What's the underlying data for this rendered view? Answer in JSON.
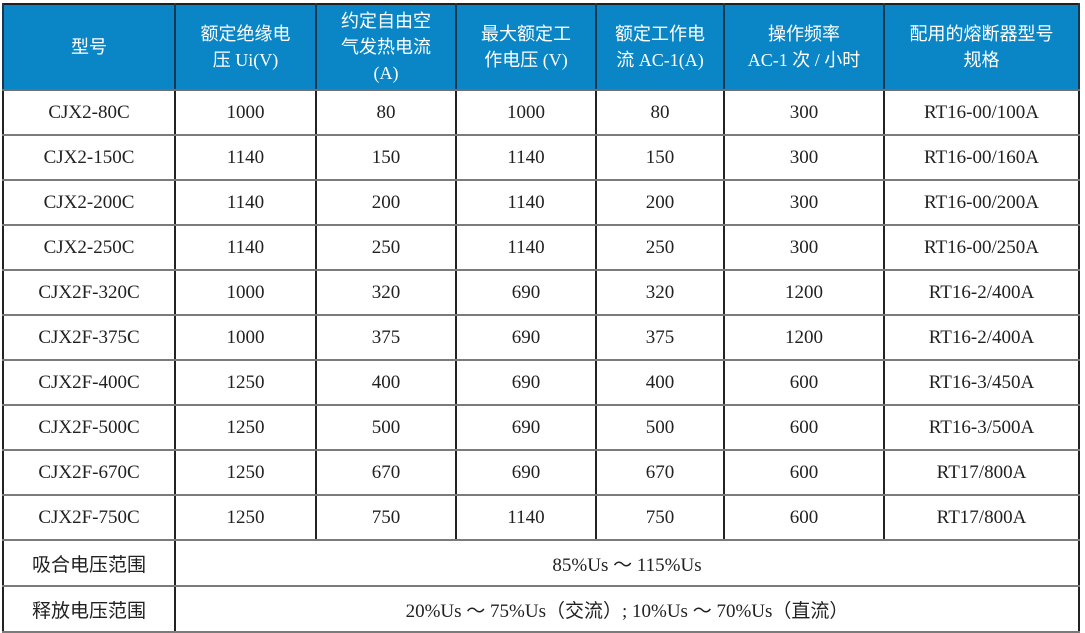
{
  "table": {
    "columns": [
      "型号",
      "额定绝缘电\n压 Ui(V)",
      "约定自由空\n气发热电流\n(A)",
      "最大额定工\n作电压 (V)",
      "额定工作电\n流 AC-1(A)",
      "操作频率\nAC-1 次 / 小时",
      "配用的熔断器型号\n规格"
    ],
    "rows": [
      [
        "CJX2-80C",
        "1000",
        "80",
        "1000",
        "80",
        "300",
        "RT16-00/100A"
      ],
      [
        "CJX2-150C",
        "1140",
        "150",
        "1140",
        "150",
        "300",
        "RT16-00/160A"
      ],
      [
        "CJX2-200C",
        "1140",
        "200",
        "1140",
        "200",
        "300",
        "RT16-00/200A"
      ],
      [
        "CJX2-250C",
        "1140",
        "250",
        "1140",
        "250",
        "300",
        "RT16-00/250A"
      ],
      [
        "CJX2F-320C",
        "1000",
        "320",
        "690",
        "320",
        "1200",
        "RT16-2/400A"
      ],
      [
        "CJX2F-375C",
        "1000",
        "375",
        "690",
        "375",
        "1200",
        "RT16-2/400A"
      ],
      [
        "CJX2F-400C",
        "1250",
        "400",
        "690",
        "400",
        "600",
        "RT16-3/450A"
      ],
      [
        "CJX2F-500C",
        "1250",
        "500",
        "690",
        "500",
        "600",
        "RT16-3/500A"
      ],
      [
        "CJX2F-670C",
        "1250",
        "670",
        "690",
        "670",
        "600",
        "RT17/800A"
      ],
      [
        "CJX2F-750C",
        "1250",
        "750",
        "1140",
        "750",
        "600",
        "RT17/800A"
      ]
    ],
    "footer_rows": [
      {
        "label": "吸合电压范围",
        "value": "85%Us ～ 115%Us"
      },
      {
        "label": "释放电压范围",
        "value": "20%Us ～ 75%Us（交流）; 10%Us ～ 70%Us（直流）"
      }
    ]
  },
  "colors": {
    "header_bg": "#0a86c6",
    "header_text": "#ffffff",
    "body_text": "#212121",
    "grid_horizontal": "#7b7b7b",
    "grid_vertical": "#222222"
  }
}
